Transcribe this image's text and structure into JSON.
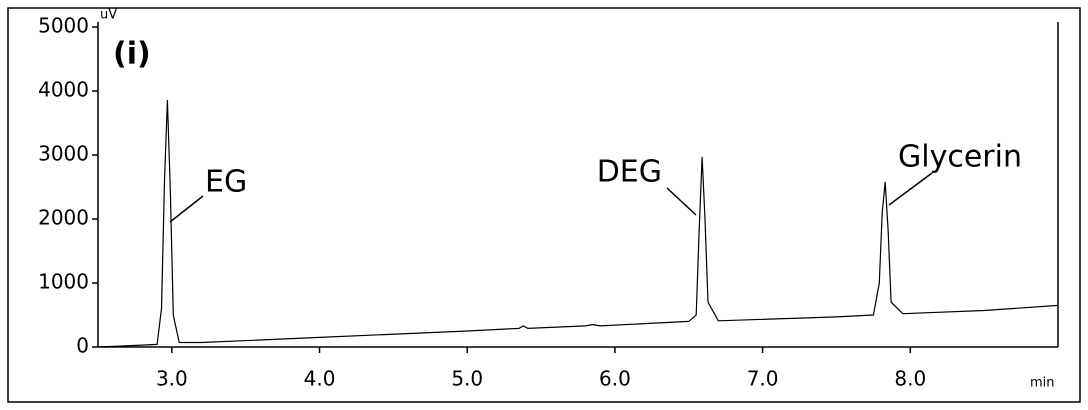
{
  "chart_data": {
    "type": "line",
    "panel_label": "(i)",
    "y_unit": "uV",
    "x_unit": "min",
    "x": [
      2.5,
      2.8,
      2.9,
      2.93,
      2.95,
      2.97,
      2.99,
      3.01,
      3.05,
      3.2,
      4.0,
      5.0,
      5.35,
      5.38,
      5.41,
      5.8,
      5.85,
      5.9,
      6.5,
      6.55,
      6.57,
      6.59,
      6.61,
      6.63,
      6.7,
      7.5,
      7.75,
      7.79,
      7.81,
      7.83,
      7.85,
      7.87,
      7.95,
      8.5,
      9.0
    ],
    "series": [
      {
        "color": "#000000",
        "values": [
          0,
          30,
          40,
          600,
          2600,
          3860,
          2400,
          500,
          70,
          70,
          150,
          250,
          290,
          330,
          290,
          330,
          350,
          330,
          400,
          500,
          1800,
          2970,
          2000,
          700,
          410,
          470,
          500,
          1000,
          2100,
          2580,
          1800,
          700,
          520,
          570,
          650
        ]
      }
    ],
    "annotations": [
      "EG",
      "DEG",
      "Glycerin"
    ],
    "xlim": [
      2.5,
      9.0
    ],
    "xticks": [
      {
        "value": 3,
        "label": "3.0"
      },
      {
        "value": 4,
        "label": "4.0"
      },
      {
        "value": 5,
        "label": "5.0"
      },
      {
        "value": 6,
        "label": "6.0"
      },
      {
        "value": 7,
        "label": "7.0"
      },
      {
        "value": 8,
        "label": "8.0"
      }
    ],
    "ylim": [
      0,
      5000
    ],
    "yticks": [
      0,
      1000,
      2000,
      3000,
      4000,
      5000
    ]
  }
}
